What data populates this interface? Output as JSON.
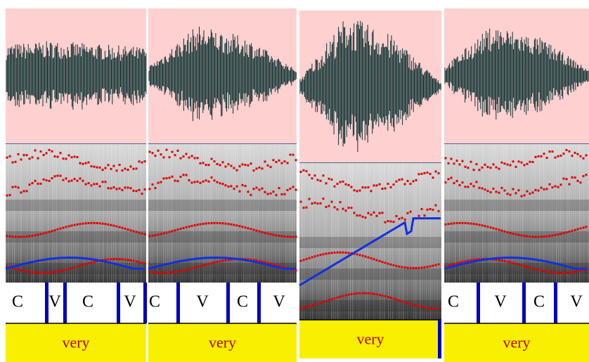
{
  "panels": [
    {
      "segments": [
        "C",
        "V",
        "C",
        "V"
      ],
      "word": "very"
    },
    {
      "segments": [
        "C",
        "V",
        "C",
        "V"
      ],
      "word": "very"
    },
    {
      "segments": [],
      "word": "very"
    },
    {
      "segments": [
        "C",
        "V",
        "C",
        "V"
      ],
      "word": "very"
    }
  ]
}
